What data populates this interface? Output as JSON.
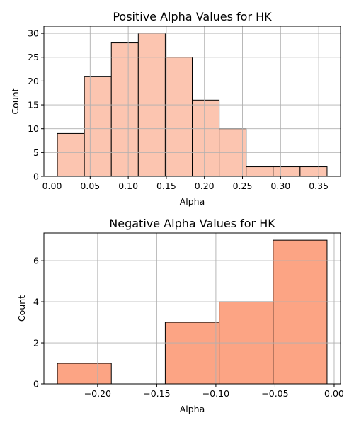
{
  "chart_data": [
    {
      "type": "bar",
      "title": "Positive Alpha Values for HK",
      "xlabel": "Alpha",
      "ylabel": "Count",
      "bin_edges": [
        0.007,
        0.0424,
        0.0778,
        0.1132,
        0.1486,
        0.184,
        0.2194,
        0.2548,
        0.2902,
        0.3256,
        0.361
      ],
      "values": [
        9,
        21,
        28,
        30,
        25,
        16,
        10,
        2,
        2,
        2
      ],
      "xlim": [
        -0.0107,
        0.3787
      ],
      "ylim": [
        0,
        31.5
      ],
      "xticks": [
        0.0,
        0.05,
        0.1,
        0.15,
        0.2,
        0.25,
        0.3,
        0.35
      ],
      "xtick_labels": [
        "0.00",
        "0.05",
        "0.10",
        "0.15",
        "0.20",
        "0.25",
        "0.30",
        "0.35"
      ],
      "yticks": [
        0,
        5,
        10,
        15,
        20,
        25,
        30
      ],
      "ytick_labels": [
        "0",
        "5",
        "10",
        "15",
        "20",
        "25",
        "30"
      ],
      "grid": true,
      "bar_color": "#fcc5b0",
      "edge_color": "#000000"
    },
    {
      "type": "bar",
      "title": "Negative Alpha Values for HK",
      "xlabel": "Alpha",
      "ylabel": "Count",
      "bin_edges": [
        -0.234,
        -0.1884,
        -0.1428,
        -0.0972,
        -0.0516,
        -0.006
      ],
      "values": [
        1,
        0,
        3,
        4,
        7
      ],
      "xlim": [
        -0.2454,
        0.0054
      ],
      "ylim": [
        0,
        7.35
      ],
      "xticks": [
        -0.2,
        -0.15,
        -0.1,
        -0.05,
        0.0
      ],
      "xtick_labels": [
        "−0.20",
        "−0.15",
        "−0.10",
        "−0.05",
        "0.00"
      ],
      "yticks": [
        0,
        2,
        4,
        6
      ],
      "ytick_labels": [
        "0",
        "2",
        "4",
        "6"
      ],
      "grid": true,
      "bar_color": "#fca484",
      "edge_color": "#000000"
    }
  ]
}
